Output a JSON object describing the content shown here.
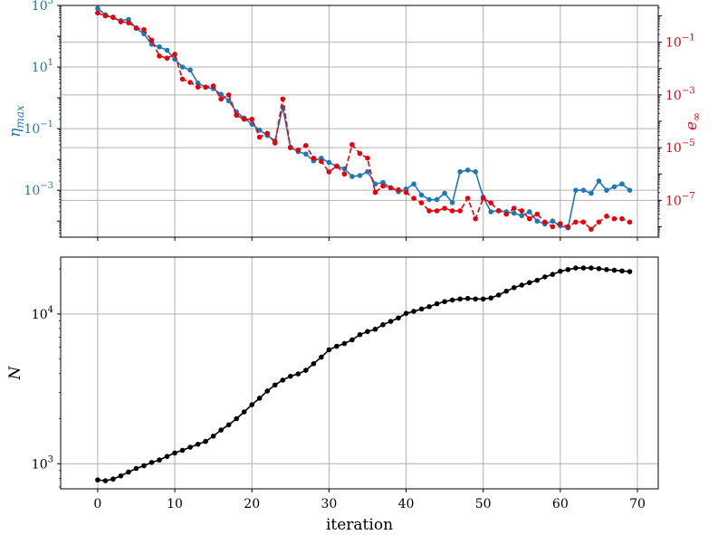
{
  "colors": {
    "blue": "#1f77b4",
    "red": "#e8000b",
    "black": "#000000",
    "grid": "#b0b0b0"
  },
  "chart_data": [
    {
      "type": "line",
      "panel": "top",
      "xlabel": "",
      "grid": true,
      "y_left": {
        "label_base": "η",
        "label_sub": "max",
        "scale": "log",
        "ylim": [
          3e-05,
          1000
        ],
        "tick_labels": [
          {
            "value": 1000,
            "base": "10",
            "exp": "3"
          },
          {
            "value": 10,
            "base": "10",
            "exp": "1"
          },
          {
            "value": 0.1,
            "base": "10",
            "exp": "−1"
          },
          {
            "value": 0.001,
            "base": "10",
            "exp": "−3"
          }
        ]
      },
      "y_right": {
        "label_base": "e",
        "label_sub": "∞",
        "scale": "log",
        "ylim": [
          4e-09,
          2.5
        ],
        "tick_labels": [
          {
            "value": 0.1,
            "base": "10",
            "exp": "−1"
          },
          {
            "value": 0.001,
            "base": "10",
            "exp": "−3"
          },
          {
            "value": 1e-05,
            "base": "10",
            "exp": "−5"
          },
          {
            "value": 1e-07,
            "base": "10",
            "exp": "−7"
          }
        ]
      },
      "x": [
        0,
        1,
        2,
        3,
        4,
        5,
        6,
        7,
        8,
        9,
        10,
        11,
        12,
        13,
        14,
        15,
        16,
        17,
        18,
        19,
        20,
        21,
        22,
        23,
        24,
        25,
        26,
        27,
        28,
        29,
        30,
        31,
        32,
        33,
        34,
        35,
        36,
        37,
        38,
        39,
        40,
        41,
        42,
        43,
        44,
        45,
        46,
        47,
        48,
        49,
        50,
        51,
        52,
        53,
        54,
        55,
        56,
        57,
        58,
        59,
        60,
        61,
        62,
        63,
        64,
        65,
        66,
        67,
        68,
        69
      ],
      "series": [
        {
          "axis": "left",
          "color": "blue",
          "dash": "solid",
          "values": [
            800,
            500,
            400,
            320,
            350,
            180,
            120,
            55,
            45,
            35,
            18,
            10,
            8,
            3,
            2.2,
            2,
            1.3,
            0.8,
            0.35,
            0.22,
            0.14,
            0.09,
            0.06,
            0.04,
            0.5,
            0.025,
            0.018,
            0.015,
            0.009,
            0.011,
            0.008,
            0.006,
            0.005,
            0.0028,
            0.003,
            0.004,
            0.0016,
            0.0018,
            0.0012,
            0.0009,
            0.0011,
            0.0016,
            0.0007,
            0.0005,
            0.0005,
            0.0008,
            0.0004,
            0.004,
            0.0045,
            0.004,
            0.0006,
            0.0002,
            0.00022,
            0.0002,
            0.00018,
            0.00015,
            0.0002,
            0.0001,
            8e-05,
            0.0001,
            7e-05,
            6e-05,
            0.001,
            0.001,
            0.0008,
            0.002,
            0.001,
            0.0013,
            0.0016,
            0.001
          ]
        },
        {
          "axis": "right",
          "color": "red",
          "dash": "dashed",
          "values": [
            1.3,
            1,
            0.9,
            0.6,
            0.55,
            0.35,
            0.3,
            0.12,
            0.03,
            0.025,
            0.035,
            0.004,
            0.003,
            0.002,
            0.002,
            0.0022,
            0.0007,
            0.001,
            0.00017,
            0.00012,
            0.00012,
            2.5e-05,
            3.5e-05,
            1.5e-05,
            0.0007,
            1e-05,
            8e-06,
            1.2e-05,
            4e-06,
            3e-06,
            1.2e-06,
            2e-06,
            1e-06,
            1.3e-05,
            6e-06,
            4e-06,
            2e-07,
            3.5e-07,
            3e-07,
            2.5e-07,
            2e-07,
            1.2e-07,
            8e-08,
            4e-08,
            4e-08,
            5e-08,
            4e-08,
            4e-08,
            1.2e-07,
            2e-08,
            1.2e-07,
            8e-08,
            4e-08,
            3e-08,
            5e-08,
            4e-08,
            2e-08,
            3e-08,
            1.5e-08,
            1e-08,
            1.3e-08,
            1e-08,
            1.5e-08,
            1.5e-08,
            8e-09,
            1.5e-08,
            2.5e-08,
            2e-08,
            2e-08,
            1.5e-08
          ]
        }
      ]
    },
    {
      "type": "line",
      "panel": "bottom",
      "xlabel": "iteration",
      "ylabel": "N",
      "grid": true,
      "yscale": "log",
      "xlim": [
        -4.8,
        72.7
      ],
      "ylim": [
        680,
        24000
      ],
      "x_tick_labels": [
        "0",
        "10",
        "20",
        "30",
        "40",
        "50",
        "60",
        "70"
      ],
      "y_tick_labels": [
        {
          "value": 10000,
          "base": "10",
          "exp": "4"
        },
        {
          "value": 1000,
          "base": "10",
          "exp": "3"
        }
      ],
      "x": [
        0,
        1,
        2,
        3,
        4,
        5,
        6,
        7,
        8,
        9,
        10,
        11,
        12,
        13,
        14,
        15,
        16,
        17,
        18,
        19,
        20,
        21,
        22,
        23,
        24,
        25,
        26,
        27,
        28,
        29,
        30,
        31,
        32,
        33,
        34,
        35,
        36,
        37,
        38,
        39,
        40,
        41,
        42,
        43,
        44,
        45,
        46,
        47,
        48,
        49,
        50,
        51,
        52,
        53,
        54,
        55,
        56,
        57,
        58,
        59,
        60,
        61,
        62,
        63,
        64,
        65,
        66,
        67,
        68,
        69
      ],
      "series": [
        {
          "color": "black",
          "dash": "solid",
          "values": [
            780,
            770,
            790,
            830,
            880,
            930,
            970,
            1020,
            1060,
            1120,
            1180,
            1230,
            1290,
            1350,
            1410,
            1530,
            1680,
            1820,
            2000,
            2220,
            2480,
            2740,
            3060,
            3360,
            3620,
            3840,
            3980,
            4210,
            4660,
            5150,
            5770,
            6090,
            6350,
            6720,
            7280,
            7640,
            7910,
            8480,
            8930,
            9410,
            10100,
            10420,
            10800,
            11200,
            11700,
            12100,
            12400,
            12600,
            12700,
            12600,
            12600,
            12800,
            13400,
            14200,
            15000,
            15600,
            16200,
            16800,
            17700,
            18400,
            19300,
            19800,
            20300,
            20300,
            20300,
            20100,
            19800,
            19600,
            19400,
            19200
          ]
        }
      ]
    }
  ]
}
